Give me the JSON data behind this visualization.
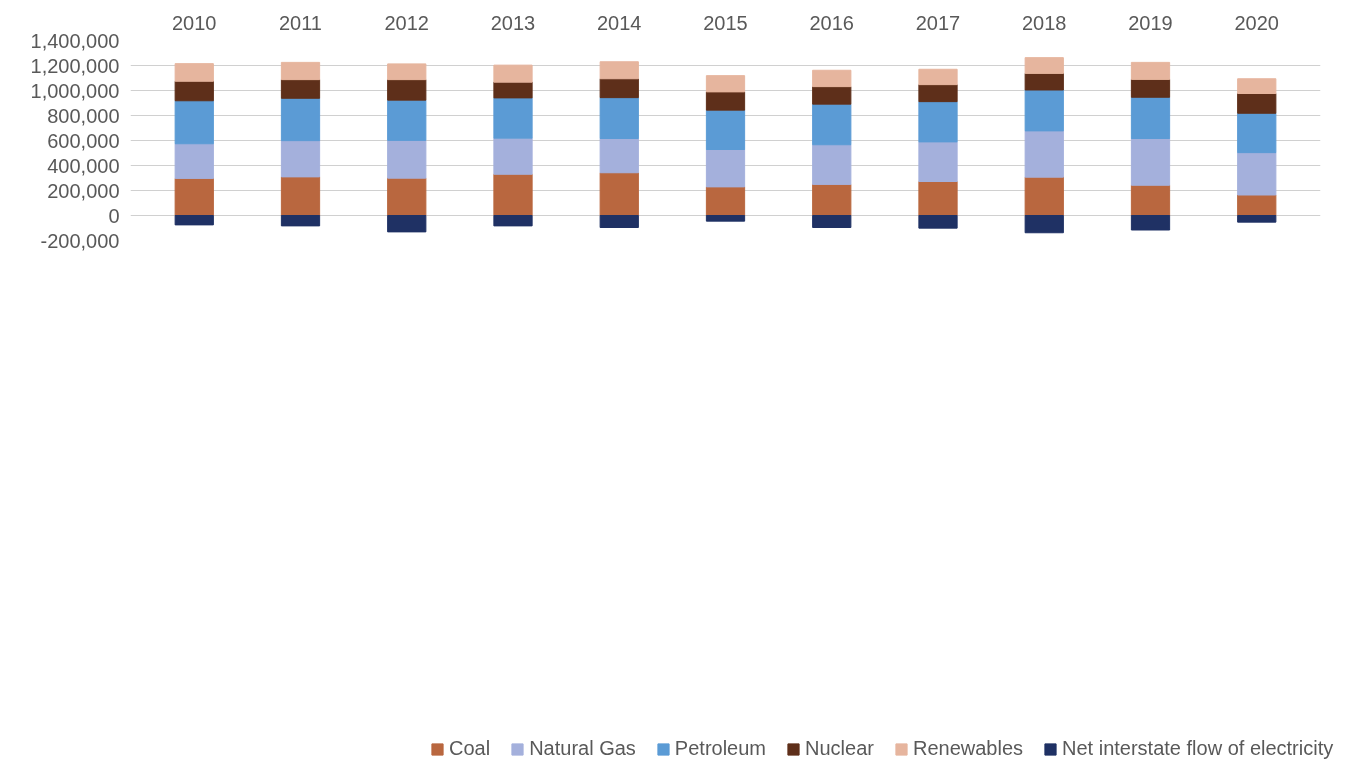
{
  "chart_data": {
    "type": "bar",
    "stacked": true,
    "categories": [
      "2010",
      "2011",
      "2012",
      "2013",
      "2014",
      "2015",
      "2016",
      "2017",
      "2018",
      "2019",
      "2020"
    ],
    "series": [
      {
        "name": "Coal",
        "color": "#b9673f",
        "values": [
          297000,
          309000,
          299000,
          330000,
          342000,
          229000,
          249000,
          272000,
          307000,
          242000,
          164000
        ]
      },
      {
        "name": "Natural Gas",
        "color": "#a4b0dc",
        "values": [
          277000,
          290000,
          302000,
          289000,
          274000,
          299000,
          317000,
          317000,
          370000,
          374000,
          339000
        ]
      },
      {
        "name": "Petroleum",
        "color": "#5b9bd5",
        "values": [
          344000,
          339000,
          322000,
          322000,
          327000,
          315000,
          325000,
          322000,
          327000,
          330000,
          315000
        ]
      },
      {
        "name": "Nuclear",
        "color": "#5e2f1a",
        "values": [
          156000,
          149000,
          164000,
          126000,
          151000,
          146000,
          140000,
          136000,
          133000,
          143000,
          158000
        ]
      },
      {
        "name": "Renewables",
        "color": "#e6b59e",
        "values": [
          141000,
          138000,
          126000,
          136000,
          136000,
          130000,
          131000,
          123000,
          126000,
          136000,
          118000
        ]
      },
      {
        "name": "Net interstate flow of electricity",
        "color": "#1f3164",
        "values": [
          -75000,
          -83000,
          -131000,
          -83000,
          -96000,
          -45000,
          -96000,
          -101000,
          -138000,
          -116000,
          -53000
        ]
      }
    ],
    "ylim": [
      -200000,
      1400000
    ],
    "yticks": [
      {
        "value": -200000,
        "label": "-200,000"
      },
      0,
      {
        "value": 200000,
        "label": "200,000"
      },
      {
        "value": 400000,
        "label": "400,000"
      },
      {
        "value": 600000,
        "label": "600,000"
      },
      {
        "value": 800000,
        "label": "800,000"
      },
      {
        "value": 1000000,
        "label": "1,000,000"
      },
      {
        "value": 1200000,
        "label": "1,200,000"
      },
      {
        "value": 1400000,
        "label": "1,400,000"
      }
    ],
    "grid": "y",
    "legend": "bottom"
  }
}
